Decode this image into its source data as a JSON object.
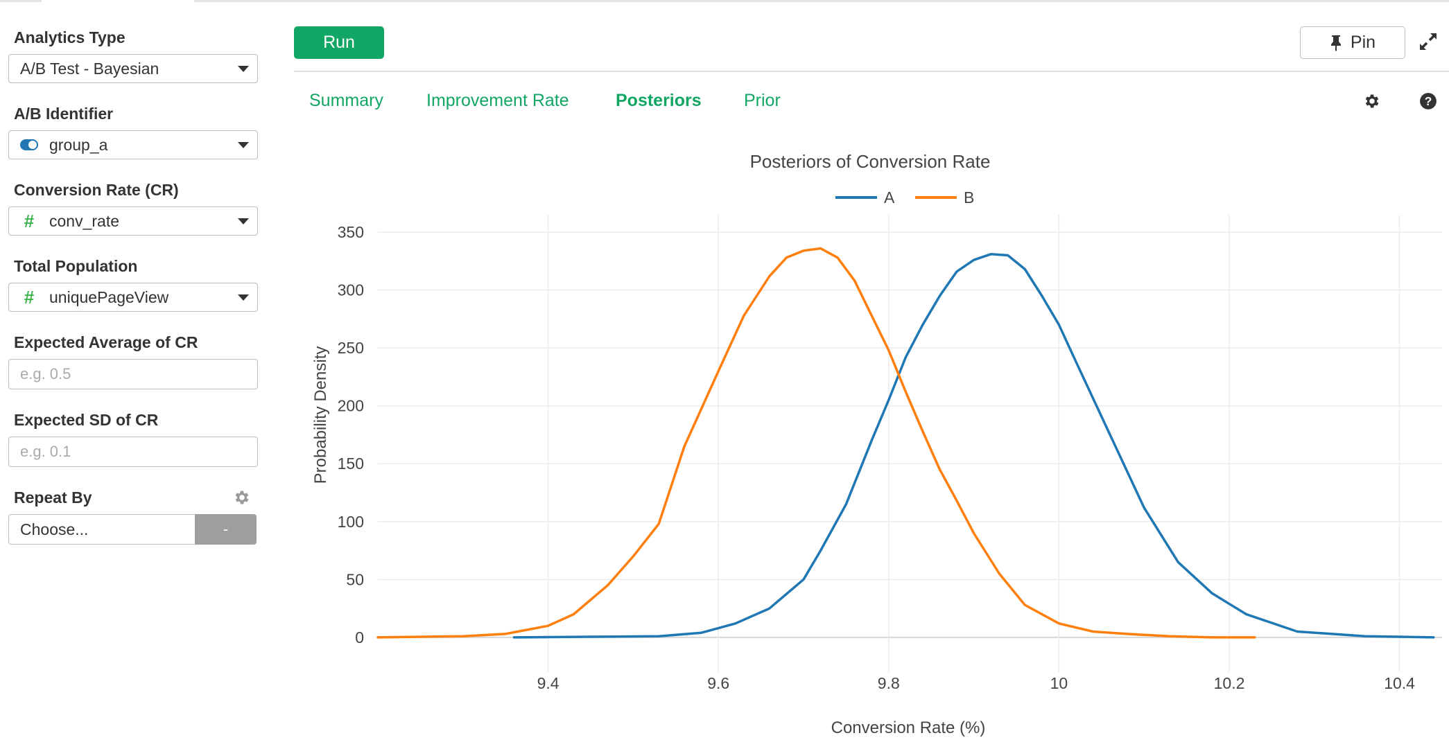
{
  "sidebar": {
    "analytics_type": {
      "label": "Analytics Type",
      "value": "A/B Test - Bayesian"
    },
    "ab_identifier": {
      "label": "A/B Identifier",
      "value": "group_a",
      "icon": "toggle-icon"
    },
    "conversion_rate": {
      "label": "Conversion Rate (CR)",
      "value": "conv_rate",
      "icon": "hash-icon"
    },
    "total_population": {
      "label": "Total Population",
      "value": "uniquePageView",
      "icon": "hash-icon"
    },
    "expected_average": {
      "label": "Expected Average of CR",
      "placeholder": "e.g. 0.5"
    },
    "expected_sd": {
      "label": "Expected SD of CR",
      "placeholder": "e.g. 0.1"
    },
    "repeat_by": {
      "label": "Repeat By",
      "value": "Choose...",
      "button": "-"
    }
  },
  "toolbar": {
    "run": "Run",
    "pin": "Pin"
  },
  "tabs": [
    {
      "label": "Summary",
      "active": false
    },
    {
      "label": "Improvement Rate",
      "active": false
    },
    {
      "label": "Posteriors",
      "active": true
    },
    {
      "label": "Prior",
      "active": false
    }
  ],
  "colors": {
    "accent": "#12a664",
    "series_a": "#1f77b4",
    "series_b": "#ff7f0e"
  },
  "chart_data": {
    "type": "line",
    "title": "Posteriors of Conversion Rate",
    "xlabel": "Conversion Rate (%)",
    "ylabel": "Probability Density",
    "xlim": [
      9.2,
      10.45
    ],
    "ylim": [
      -30,
      365
    ],
    "xticks": [
      9.4,
      9.6,
      9.8,
      10,
      10.2,
      10.4
    ],
    "xtick_labels": [
      "9.4",
      "9.6",
      "9.8",
      "10",
      "10.2",
      "10.4"
    ],
    "yticks": [
      0,
      50,
      100,
      150,
      200,
      250,
      300,
      350
    ],
    "ytick_labels": [
      "0",
      "50",
      "100",
      "150",
      "200",
      "250",
      "300",
      "350"
    ],
    "grid": true,
    "legend": "top-center",
    "series": [
      {
        "name": "A",
        "x": [
          9.36,
          9.45,
          9.53,
          9.58,
          9.62,
          9.66,
          9.7,
          9.72,
          9.75,
          9.78,
          9.8,
          9.82,
          9.84,
          9.86,
          9.88,
          9.9,
          9.92,
          9.94,
          9.96,
          9.98,
          10.0,
          10.02,
          10.06,
          10.1,
          10.14,
          10.18,
          10.22,
          10.28,
          10.36,
          10.44
        ],
        "y": [
          0,
          0.5,
          1,
          4,
          12,
          25,
          50,
          75,
          115,
          170,
          205,
          242,
          270,
          295,
          316,
          326,
          331,
          330,
          318,
          295,
          270,
          238,
          175,
          112,
          65,
          38,
          20,
          5,
          1,
          0
        ]
      },
      {
        "name": "B",
        "x": [
          9.2,
          9.3,
          9.35,
          9.4,
          9.43,
          9.47,
          9.5,
          9.53,
          9.56,
          9.6,
          9.63,
          9.66,
          9.68,
          9.7,
          9.72,
          9.74,
          9.76,
          9.78,
          9.8,
          9.82,
          9.84,
          9.86,
          9.88,
          9.9,
          9.93,
          9.96,
          10.0,
          10.04,
          10.08,
          10.13,
          10.18,
          10.23
        ],
        "y": [
          0,
          1,
          3,
          10,
          20,
          45,
          70,
          98,
          165,
          230,
          278,
          312,
          328,
          334,
          336,
          328,
          308,
          278,
          248,
          212,
          178,
          145,
          118,
          90,
          55,
          28,
          12,
          5,
          3,
          1,
          0,
          0
        ]
      }
    ]
  }
}
